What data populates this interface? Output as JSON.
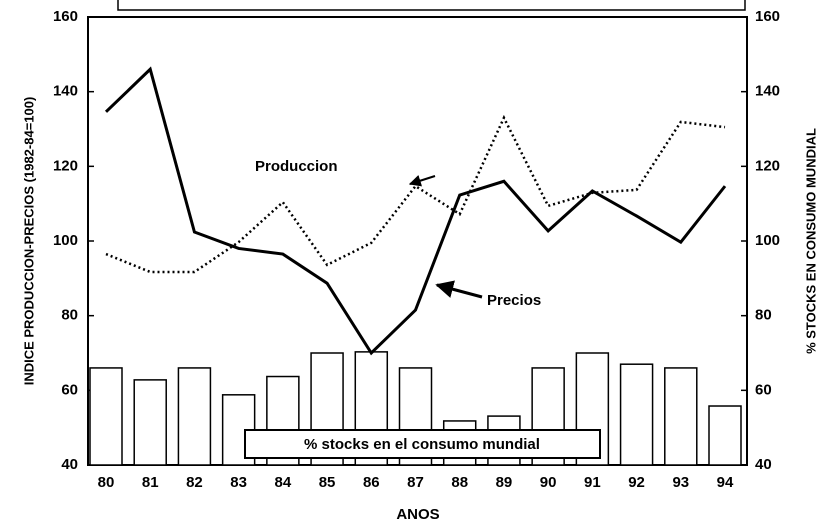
{
  "chart_data": {
    "type": "line",
    "x_label": "ANOS",
    "y_label": "INDICE PRODUCCION-PRECIOS (1982-84=100)",
    "y2_label": "% STOCKS EN CONSUMO MUNDIAL",
    "categories": [
      "80",
      "81",
      "82",
      "83",
      "84",
      "85",
      "86",
      "87",
      "88",
      "89",
      "90",
      "91",
      "92",
      "93",
      "94"
    ],
    "ylim": [
      40,
      160
    ],
    "yticks": [
      40,
      60,
      80,
      100,
      120,
      140,
      160
    ],
    "y2lim": [
      40,
      160
    ],
    "y2ticks": [
      40,
      60,
      80,
      100,
      120,
      140,
      160
    ],
    "series": [
      {
        "name": "% stocks en el consumo mundial",
        "type": "bar",
        "axis": "y2",
        "color": "#ffffff",
        "values": [
          66,
          62.8,
          66,
          58.8,
          63.7,
          70,
          70.3,
          66,
          51.8,
          53.1,
          66,
          70,
          67,
          66,
          55.8
        ]
      },
      {
        "name": "Produccion",
        "type": "line",
        "style": "dotted",
        "color": "#000000",
        "values": [
          96.5,
          91.7,
          91.7,
          99.7,
          110.4,
          93.6,
          99.5,
          114.7,
          107.2,
          133,
          109.4,
          112.9,
          113.7,
          131.9,
          130.5
        ]
      },
      {
        "name": "Precios",
        "type": "line",
        "style": "solid",
        "color": "#000000",
        "values": [
          134.6,
          146,
          102.4,
          98,
          96.5,
          88.7,
          70,
          81.5,
          112.3,
          116,
          102.7,
          113.4,
          106.7,
          99.7,
          114.7
        ]
      }
    ]
  }
}
